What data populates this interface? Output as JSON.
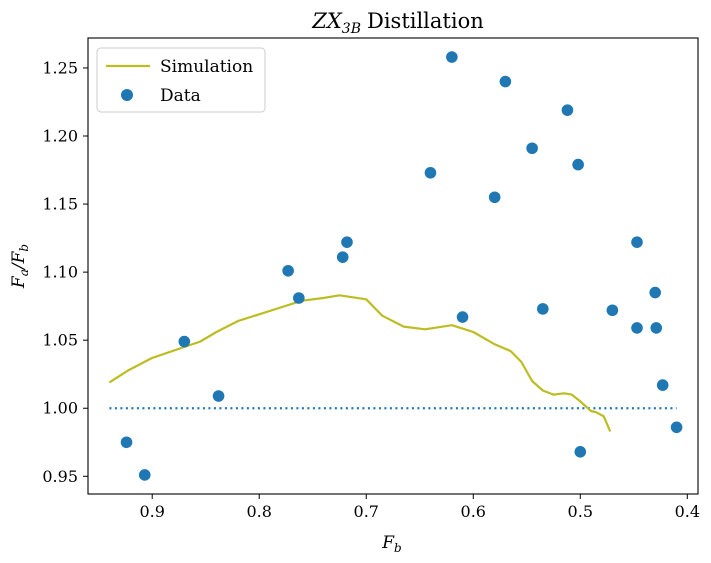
{
  "chart_data": {
    "type": "scatter",
    "title_math": "ZX",
    "title_sub": "3B",
    "title_rest": "Distillation",
    "xlabel_main": "F",
    "xlabel_sub": "b",
    "ylabel_main_a": "F",
    "ylabel_sub_a": "a",
    "ylabel_sep": "/",
    "ylabel_main_b": "F",
    "ylabel_sub_b": "b",
    "xlim": [
      0.96,
      0.39
    ],
    "ylim": [
      0.937,
      1.272
    ],
    "x_ticks": [
      0.9,
      0.8,
      0.7,
      0.6,
      0.5,
      0.4
    ],
    "x_tick_labels": [
      "0.9",
      "0.8",
      "0.7",
      "0.6",
      "0.5",
      "0.4"
    ],
    "y_ticks": [
      0.95,
      1.0,
      1.05,
      1.1,
      1.15,
      1.2,
      1.25
    ],
    "y_tick_labels": [
      "0.95",
      "1.00",
      "1.05",
      "1.10",
      "1.15",
      "1.20",
      "1.25"
    ],
    "legend_position": "top-left",
    "series": [
      {
        "name": "Simulation",
        "kind": "line",
        "color": "#bcbd22",
        "points": [
          [
            0.94,
            1.019
          ],
          [
            0.922,
            1.028
          ],
          [
            0.9,
            1.037
          ],
          [
            0.87,
            1.045
          ],
          [
            0.855,
            1.049
          ],
          [
            0.84,
            1.056
          ],
          [
            0.82,
            1.064
          ],
          [
            0.8,
            1.069
          ],
          [
            0.78,
            1.074
          ],
          [
            0.76,
            1.079
          ],
          [
            0.74,
            1.081
          ],
          [
            0.725,
            1.083
          ],
          [
            0.7,
            1.08
          ],
          [
            0.685,
            1.068
          ],
          [
            0.665,
            1.06
          ],
          [
            0.645,
            1.058
          ],
          [
            0.62,
            1.061
          ],
          [
            0.6,
            1.056
          ],
          [
            0.58,
            1.047
          ],
          [
            0.565,
            1.042
          ],
          [
            0.555,
            1.034
          ],
          [
            0.545,
            1.02
          ],
          [
            0.535,
            1.013
          ],
          [
            0.525,
            1.01
          ],
          [
            0.515,
            1.011
          ],
          [
            0.508,
            1.01
          ],
          [
            0.5,
            1.005
          ],
          [
            0.49,
            0.998
          ],
          [
            0.485,
            0.997
          ],
          [
            0.478,
            0.994
          ],
          [
            0.472,
            0.983
          ]
        ]
      },
      {
        "name": "Data",
        "kind": "scatter",
        "color": "#1f77b4",
        "points": [
          [
            0.924,
            0.975
          ],
          [
            0.907,
            0.951
          ],
          [
            0.87,
            1.049
          ],
          [
            0.838,
            1.009
          ],
          [
            0.773,
            1.101
          ],
          [
            0.763,
            1.081
          ],
          [
            0.722,
            1.111
          ],
          [
            0.718,
            1.122
          ],
          [
            0.64,
            1.173
          ],
          [
            0.62,
            1.258
          ],
          [
            0.61,
            1.067
          ],
          [
            0.58,
            1.155
          ],
          [
            0.57,
            1.24
          ],
          [
            0.545,
            1.191
          ],
          [
            0.535,
            1.073
          ],
          [
            0.512,
            1.219
          ],
          [
            0.502,
            1.179
          ],
          [
            0.5,
            0.968
          ],
          [
            0.47,
            1.072
          ],
          [
            0.447,
            1.122
          ],
          [
            0.447,
            1.059
          ],
          [
            0.43,
            1.085
          ],
          [
            0.429,
            1.059
          ],
          [
            0.423,
            1.017
          ],
          [
            0.41,
            0.986
          ]
        ]
      },
      {
        "name": "",
        "kind": "reference-line",
        "color": "#1f77b4",
        "points": [
          [
            0.94,
            1.0
          ],
          [
            0.41,
            1.0
          ]
        ]
      }
    ]
  }
}
